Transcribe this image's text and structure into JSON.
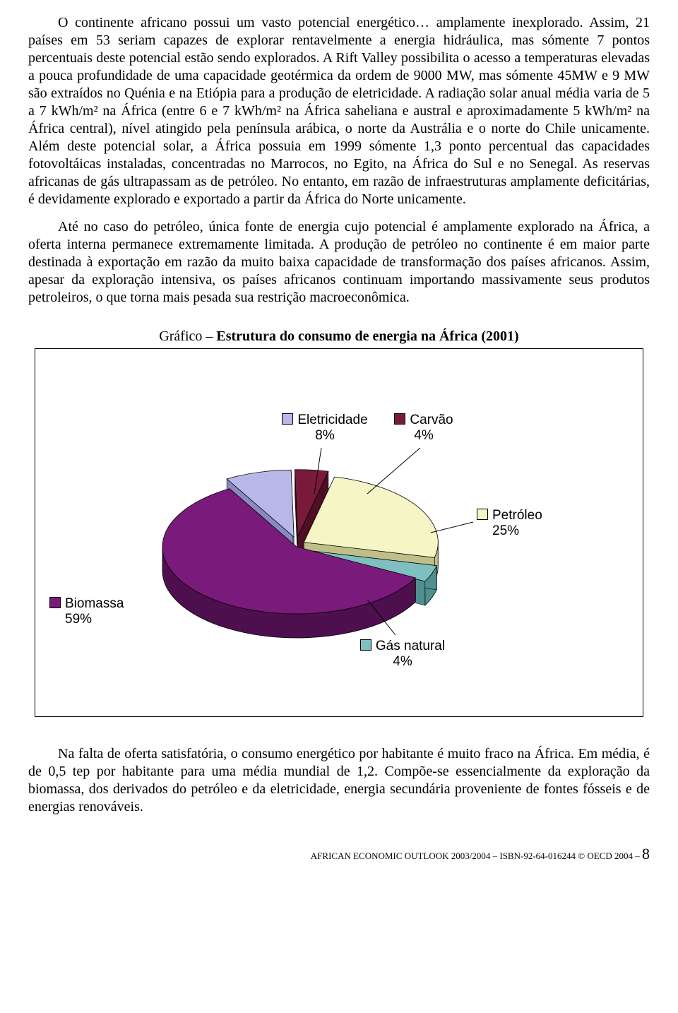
{
  "para1": "O continente africano possui um vasto potencial energético… amplamente inexplorado. Assim, 21 países em 53 seriam capazes de explorar rentavelmente a energia hidráulica, mas sómente 7 pontos percentuais deste potencial estão sendo explorados.  A Rift Valley possibilita o acesso a temperaturas elevadas a pouca profundidade de uma capacidade geotérmica da ordem de 9000 MW, mas sómente 45MW e 9 MW são extraídos no Quénia e na Etiópia para a produção de eletricidade. A radiação solar anual média varia de 5 a 7 kWh/m² na África (entre 6 e 7 kWh/m² na África saheliana e austral e aproximadamente 5 kWh/m² na África central), nível atingido pela península arábica, o norte da Austrália e o norte do Chile unicamente.  Além deste potencial solar, a África possuia em 1999 sómente 1,3 ponto percentual das capacidades fotovoltáicas instaladas, concentradas no Marrocos, no Egito, na África do Sul e no Senegal.  As reservas africanas de gás ultrapassam as de petróleo. No entanto, em razão de infraestruturas amplamente deficitárias, é devidamente explorado e exportado a partir da África do Norte unicamente.",
  "para2": "Até no caso do petróleo, única fonte de energia cujo potencial é amplamente explorado na África, a oferta interna permanece extremamente limitada. A produção de petróleo no continente é em maior parte destinada à exportação em razão da muito baixa capacidade de transformação dos países africanos.  Assim, apesar da exploração intensiva, os países africanos continuam importando massivamente seus produtos petroleiros, o que torna mais pesada sua restrição macroeconômica.",
  "para3": "Na falta de oferta satisfatória, o consumo energético por habitante é muito fraco na África.  Em média, é de 0,5 tep por habitante para uma média mundial de 1,2. Compõe-se essencialmente da exploração da biomassa, dos derivados do petróleo e da eletricidade, energia secundária proveniente de fontes fósseis e de energias renováveis.",
  "caption_prefix": "Gráfico – ",
  "caption_bold": "Estrutura do consumo de energia na África (2001)",
  "chart": {
    "type": "3d-pie-exploded",
    "slices": [
      {
        "name": "Biomassa",
        "value": 59,
        "label": "Biomassa",
        "pct": "59%",
        "color": "#7a1a7a",
        "side": "#4e0f4e"
      },
      {
        "name": "Gás natural",
        "value": 4,
        "label": "Gás natural",
        "pct": "4%",
        "color": "#7fbfbf",
        "side": "#4f8f8f"
      },
      {
        "name": "Petróleo",
        "value": 25,
        "label": "Petróleo",
        "pct": "25%",
        "color": "#f5f5c6",
        "side": "#bfbf8a"
      },
      {
        "name": "Carvão",
        "value": 4,
        "label": "Carvão",
        "pct": "4%",
        "color": "#7a1a3a",
        "side": "#4e0f25"
      },
      {
        "name": "Eletricidade",
        "value": 8,
        "label": "Eletricidade",
        "pct": "8%",
        "color": "#b8b8e8",
        "side": "#8a8ac0"
      }
    ],
    "background": "#ffffff",
    "border": "#000000",
    "label_font": "Arial",
    "label_fontsize": 19
  },
  "footer_text": "AFRICAN ECONOMIC OUTLOOK 2003/2004 – ISBN-92-64-016244 © OECD 2004 – ",
  "page_number": "8"
}
